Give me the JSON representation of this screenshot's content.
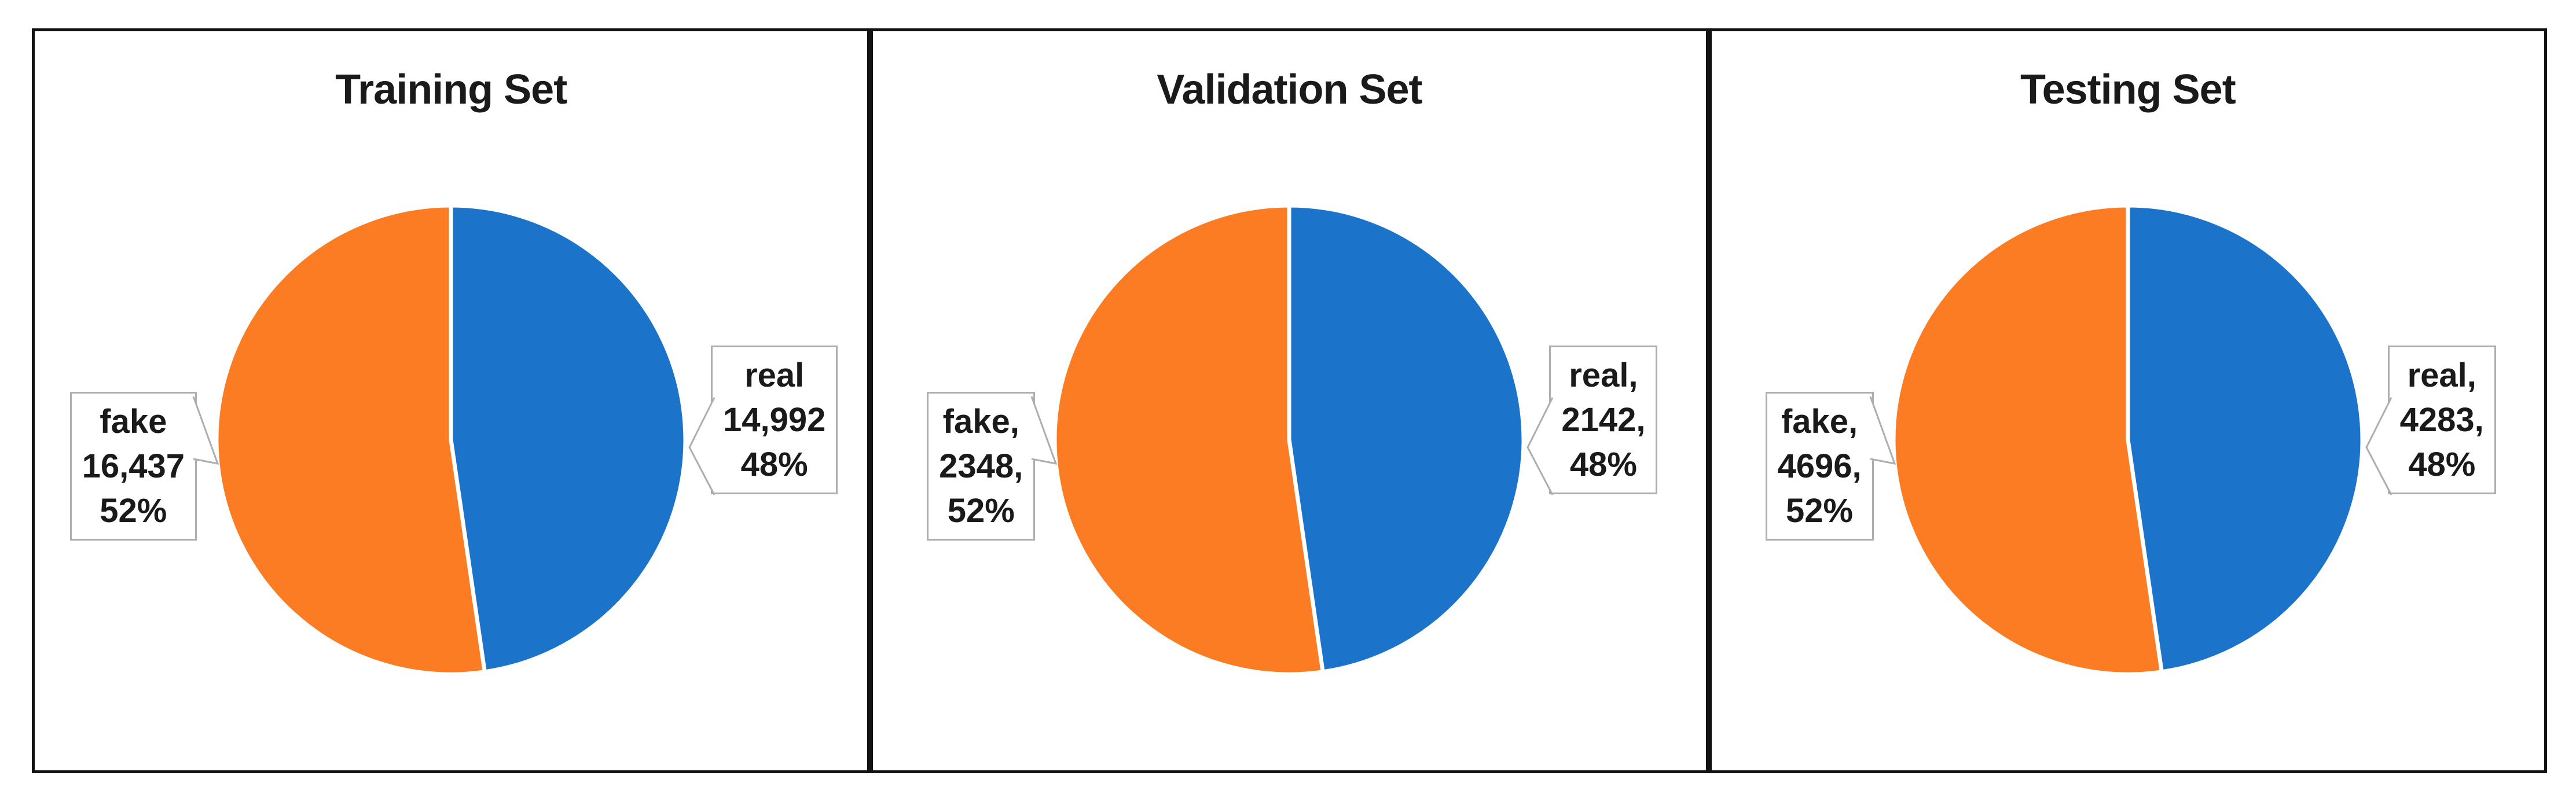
{
  "chart_data": [
    {
      "type": "pie",
      "title": "Training Set",
      "legend": "none",
      "label_style": "callout-boxes",
      "start_angle_deg": 0,
      "slices": [
        {
          "name": "real",
          "value": 14992,
          "percent": 48,
          "display_lines": [
            "real",
            "14,992",
            "48%"
          ],
          "color": "#1B74C9",
          "label_position": "right"
        },
        {
          "name": "fake",
          "value": 16437,
          "percent": 52,
          "display_lines": [
            "fake",
            "16,437",
            "52%"
          ],
          "color": "#FB7C23",
          "label_position": "left"
        }
      ]
    },
    {
      "type": "pie",
      "title": "Validation Set",
      "legend": "none",
      "label_style": "callout-boxes",
      "start_angle_deg": 0,
      "slices": [
        {
          "name": "real",
          "value": 2142,
          "percent": 48,
          "display_lines": [
            "real,",
            "2142,",
            "48%"
          ],
          "color": "#1B74C9",
          "label_position": "right"
        },
        {
          "name": "fake",
          "value": 2348,
          "percent": 52,
          "display_lines": [
            "fake,",
            "2348,",
            "52%"
          ],
          "color": "#FB7C23",
          "label_position": "left"
        }
      ]
    },
    {
      "type": "pie",
      "title": "Testing Set",
      "legend": "none",
      "label_style": "callout-boxes",
      "start_angle_deg": 0,
      "slices": [
        {
          "name": "real",
          "value": 4283,
          "percent": 48,
          "display_lines": [
            "real,",
            "4283,",
            "48%"
          ],
          "color": "#1B74C9",
          "label_position": "right"
        },
        {
          "name": "fake",
          "value": 4696,
          "percent": 52,
          "display_lines": [
            "fake,",
            "4696,",
            "52%"
          ],
          "color": "#FB7C23",
          "label_position": "left"
        }
      ]
    }
  ],
  "colors": {
    "real_slice": "#1B74C9",
    "fake_slice": "#FB7C23",
    "panel_border": "#121212",
    "callout_border": "#AEAEAE",
    "text": "#1A1A1A",
    "background": "#FFFFFF"
  }
}
